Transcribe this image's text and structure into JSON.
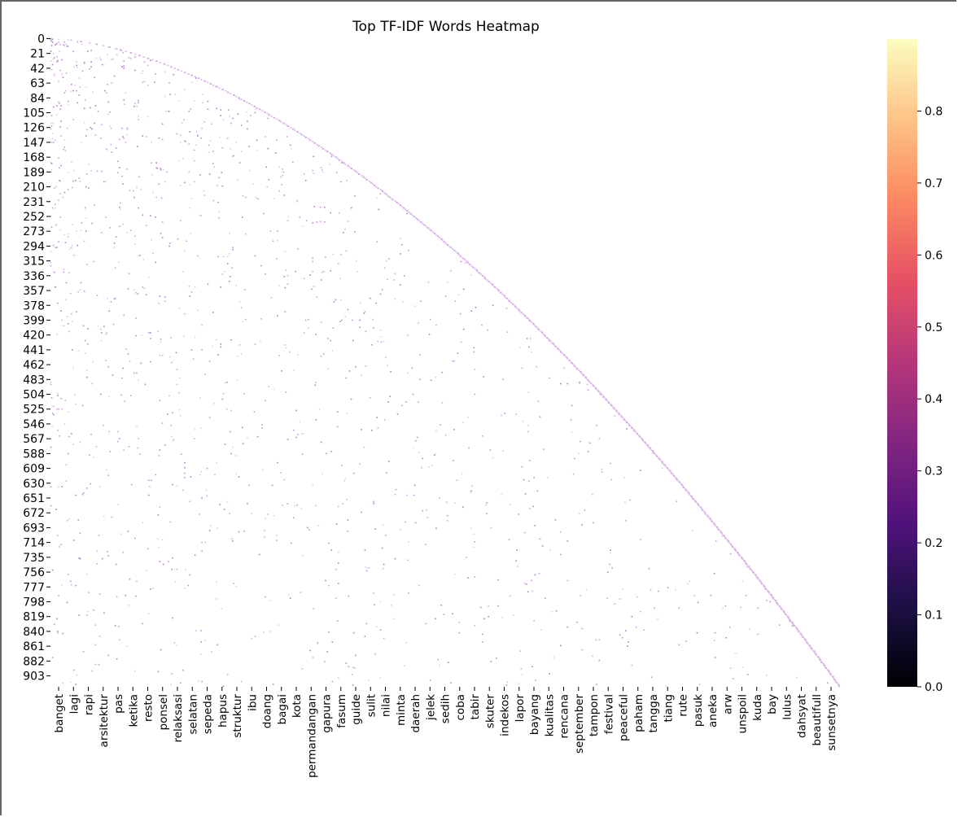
{
  "chart_data": {
    "type": "heatmap",
    "title": "Top TF-IDF Words Heatmap",
    "xlabel": "",
    "ylabel": "",
    "n_rows": 919,
    "n_cols": 919,
    "y_tick_labels": [
      "0",
      "21",
      "42",
      "63",
      "84",
      "105",
      "126",
      "147",
      "168",
      "189",
      "210",
      "231",
      "252",
      "273",
      "294",
      "315",
      "336",
      "357",
      "378",
      "399",
      "420",
      "441",
      "462",
      "483",
      "504",
      "525",
      "546",
      "567",
      "588",
      "609",
      "630",
      "651",
      "672",
      "693",
      "714",
      "735",
      "756",
      "777",
      "798",
      "819",
      "840",
      "861",
      "882",
      "903"
    ],
    "x_tick_labels": [
      "banget",
      "lagi",
      "rapi",
      "arsitektur",
      "pas",
      "ketika",
      "resto",
      "ponsel",
      "relaksasi",
      "selatan",
      "sepeda",
      "hapus",
      "struktur",
      "ibu",
      "doang",
      "bagai",
      "kota",
      "permandangan",
      "gapura",
      "fasum",
      "guide",
      "sulit",
      "nilai",
      "minta",
      "daerah",
      "jelek",
      "sedih",
      "coba",
      "tabir",
      "skuter",
      "indekos",
      "lapor",
      "bayang",
      "kualitas",
      "rencana",
      "september",
      "tampon",
      "festival",
      "peaceful",
      "paham",
      "tangga",
      "tiang",
      "rute",
      "pasuk",
      "aneka",
      "arw",
      "unspoil",
      "kuda",
      "bay",
      "lulus",
      "dahsyat",
      "beautifull",
      "sunsetnya"
    ],
    "colorbar": {
      "colormap": "magma",
      "range": [
        0.0,
        0.9
      ],
      "ticks": [
        "0.0",
        "0.1",
        "0.2",
        "0.3",
        "0.4",
        "0.5",
        "0.6",
        "0.7",
        "0.8"
      ]
    },
    "notes_visible": "sparse matrix; most cells 0 (rendered as white), non-zero cells mostly 0.3-0.4 (light purple)"
  }
}
